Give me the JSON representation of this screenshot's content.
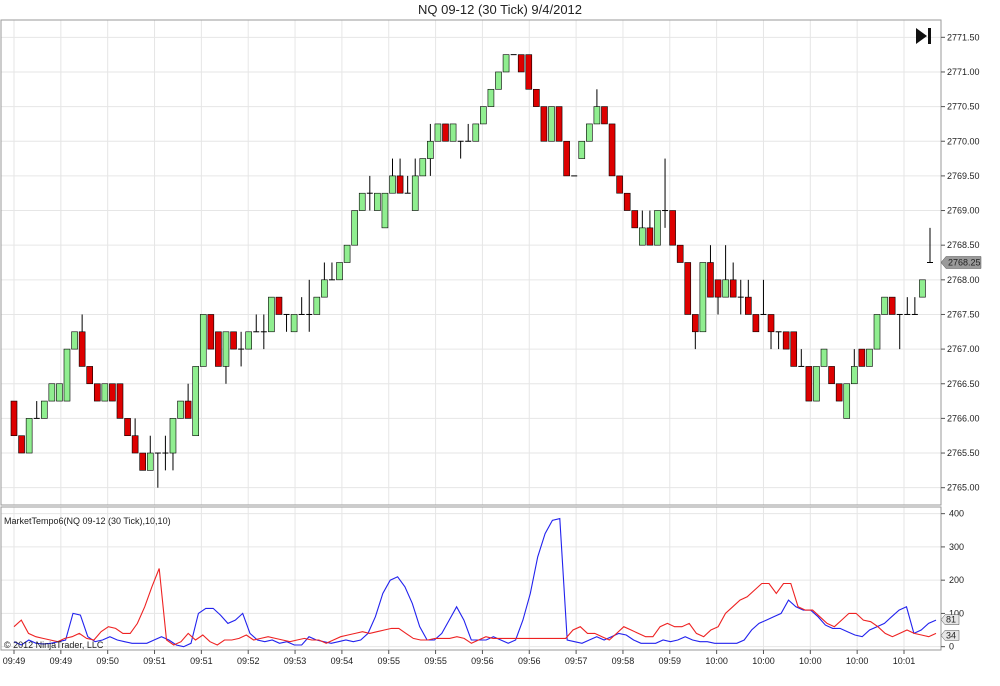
{
  "title": "NQ 09-12 (30 Tick)  9/4/2012",
  "indicator_label": "MarketTempo6(NQ 09-12 (30 Tick),10,10)",
  "copyright": "© 2012 NinjaTrader, LLC",
  "price_marker": "2768.25",
  "indicator_markers": [
    "81",
    "34"
  ],
  "icons": {
    "go_to_end": "skip-to-end-icon"
  },
  "colors": {
    "up": "#90ee90",
    "down": "#dd0000",
    "wick": "#000000",
    "blue_series": "#2222ee",
    "red_series": "#ee2222"
  },
  "chart_data": [
    {
      "type": "candlestick",
      "title": "NQ 09-12 (30 Tick)  9/4/2012",
      "ylim": [
        2764.75,
        2771.75
      ],
      "yticks": [
        "2765.00",
        "2765.50",
        "2766.00",
        "2766.50",
        "2767.00",
        "2767.50",
        "2768.00",
        "2768.50",
        "2769.00",
        "2769.50",
        "2770.00",
        "2770.50",
        "2771.00",
        "2771.50"
      ],
      "xticks": [
        "09:49",
        "09:49",
        "09:50",
        "09:51",
        "09:51",
        "09:52",
        "09:53",
        "09:54",
        "09:55",
        "09:55",
        "09:56",
        "09:56",
        "09:57",
        "09:58",
        "09:59",
        "10:00",
        "10:00",
        "10:00",
        "10:00",
        "10:01"
      ],
      "grid": true,
      "candles": [
        [
          2766.25,
          2766.25,
          2765.75,
          2765.75
        ],
        [
          2765.75,
          2765.75,
          2765.5,
          2765.5
        ],
        [
          2765.5,
          2766.0,
          2765.5,
          2766.0
        ],
        [
          2766.0,
          2766.25,
          2766.0,
          2766.0
        ],
        [
          2766.0,
          2766.25,
          2766.0,
          2766.25
        ],
        [
          2766.25,
          2766.5,
          2766.25,
          2766.5
        ],
        [
          2766.25,
          2766.5,
          2766.25,
          2766.5
        ],
        [
          2766.25,
          2767.0,
          2766.25,
          2767.0
        ],
        [
          2767.0,
          2767.25,
          2767.0,
          2767.25
        ],
        [
          2767.25,
          2767.5,
          2766.75,
          2766.75
        ],
        [
          2766.75,
          2766.75,
          2766.5,
          2766.5
        ],
        [
          2766.5,
          2766.5,
          2766.25,
          2766.25
        ],
        [
          2766.25,
          2766.5,
          2766.25,
          2766.5
        ],
        [
          2766.5,
          2766.5,
          2766.25,
          2766.25
        ],
        [
          2766.5,
          2766.5,
          2766.0,
          2766.0
        ],
        [
          2766.0,
          2766.0,
          2765.75,
          2765.75
        ],
        [
          2765.75,
          2766.0,
          2765.5,
          2765.5
        ],
        [
          2765.5,
          2765.5,
          2765.25,
          2765.25
        ],
        [
          2765.25,
          2765.75,
          2765.25,
          2765.5
        ],
        [
          2765.5,
          2765.5,
          2765.0,
          2765.5
        ],
        [
          2765.5,
          2765.75,
          2765.25,
          2765.5
        ],
        [
          2765.5,
          2766.0,
          2765.25,
          2766.0
        ],
        [
          2766.0,
          2766.25,
          2766.0,
          2766.25
        ],
        [
          2766.25,
          2766.5,
          2766.0,
          2766.0
        ],
        [
          2765.75,
          2766.75,
          2765.75,
          2766.75
        ],
        [
          2766.75,
          2767.5,
          2766.75,
          2767.5
        ],
        [
          2767.5,
          2767.5,
          2767.0,
          2767.0
        ],
        [
          2767.25,
          2767.25,
          2766.75,
          2766.75
        ],
        [
          2766.75,
          2767.25,
          2766.5,
          2767.25
        ],
        [
          2767.25,
          2767.25,
          2767.0,
          2767.0
        ],
        [
          2767.0,
          2767.25,
          2766.75,
          2767.0
        ],
        [
          2767.0,
          2767.25,
          2767.0,
          2767.25
        ],
        [
          2767.25,
          2767.5,
          2767.25,
          2767.25
        ],
        [
          2767.25,
          2767.5,
          2767.0,
          2767.25
        ],
        [
          2767.25,
          2767.75,
          2767.25,
          2767.75
        ],
        [
          2767.75,
          2767.75,
          2767.5,
          2767.5
        ],
        [
          2767.5,
          2767.5,
          2767.25,
          2767.5
        ],
        [
          2767.25,
          2767.5,
          2767.25,
          2767.5
        ],
        [
          2767.5,
          2767.75,
          2767.5,
          2767.5
        ],
        [
          2767.5,
          2768.0,
          2767.25,
          2767.5
        ],
        [
          2767.5,
          2767.75,
          2767.5,
          2767.75
        ],
        [
          2767.75,
          2768.25,
          2767.75,
          2768.0
        ],
        [
          2768.0,
          2768.25,
          2768.0,
          2768.0
        ],
        [
          2768.0,
          2768.25,
          2768.0,
          2768.25
        ],
        [
          2768.25,
          2768.5,
          2768.25,
          2768.5
        ],
        [
          2768.5,
          2769.0,
          2768.5,
          2769.0
        ],
        [
          2769.0,
          2769.25,
          2769.0,
          2769.25
        ],
        [
          2769.25,
          2769.5,
          2769.0,
          2769.25
        ],
        [
          2769.0,
          2769.25,
          2769.0,
          2769.25
        ],
        [
          2768.75,
          2769.25,
          2768.75,
          2769.25
        ],
        [
          2769.25,
          2769.75,
          2769.25,
          2769.5
        ],
        [
          2769.5,
          2769.75,
          2769.25,
          2769.25
        ],
        [
          2769.25,
          2769.5,
          2769.25,
          2769.25
        ],
        [
          2769.0,
          2769.75,
          2769.0,
          2769.5
        ],
        [
          2769.5,
          2769.75,
          2769.5,
          2769.75
        ],
        [
          2769.75,
          2770.25,
          2769.5,
          2770.0
        ],
        [
          2770.0,
          2770.25,
          2770.0,
          2770.25
        ],
        [
          2770.25,
          2770.25,
          2770.0,
          2770.0
        ],
        [
          2770.0,
          2770.25,
          2770.0,
          2770.25
        ],
        [
          2770.0,
          2770.0,
          2769.75,
          2770.0
        ],
        [
          2770.0,
          2770.25,
          2770.0,
          2770.0
        ],
        [
          2770.0,
          2770.25,
          2770.0,
          2770.25
        ],
        [
          2770.25,
          2770.5,
          2770.25,
          2770.5
        ],
        [
          2770.5,
          2770.75,
          2770.5,
          2770.75
        ],
        [
          2770.75,
          2771.0,
          2770.75,
          2771.0
        ],
        [
          2771.0,
          2771.25,
          2771.0,
          2771.25
        ],
        [
          2771.25,
          2771.25,
          2771.25,
          2771.25
        ],
        [
          2771.25,
          2771.25,
          2771.0,
          2771.0
        ],
        [
          2771.25,
          2771.25,
          2770.75,
          2770.75
        ],
        [
          2770.75,
          2770.75,
          2770.5,
          2770.5
        ],
        [
          2770.5,
          2770.5,
          2770.0,
          2770.0
        ],
        [
          2770.0,
          2770.5,
          2770.0,
          2770.5
        ],
        [
          2770.5,
          2770.5,
          2770.0,
          2770.0
        ],
        [
          2770.0,
          2770.0,
          2769.5,
          2769.5
        ],
        [
          2769.5,
          2769.5,
          2769.5,
          2769.5
        ],
        [
          2769.75,
          2770.0,
          2769.75,
          2770.0
        ],
        [
          2770.0,
          2770.25,
          2770.0,
          2770.25
        ],
        [
          2770.25,
          2770.75,
          2770.25,
          2770.5
        ],
        [
          2770.5,
          2770.5,
          2770.25,
          2770.25
        ],
        [
          2770.25,
          2770.25,
          2769.5,
          2769.5
        ],
        [
          2769.5,
          2769.5,
          2769.25,
          2769.25
        ],
        [
          2769.25,
          2769.25,
          2769.0,
          2769.0
        ],
        [
          2769.0,
          2769.0,
          2768.75,
          2768.75
        ],
        [
          2768.5,
          2769.0,
          2768.5,
          2768.75
        ],
        [
          2768.75,
          2769.0,
          2768.5,
          2768.5
        ],
        [
          2768.5,
          2769.0,
          2768.5,
          2769.0
        ],
        [
          2769.0,
          2769.75,
          2768.75,
          2769.0
        ],
        [
          2769.0,
          2769.0,
          2768.5,
          2768.5
        ],
        [
          2768.5,
          2768.5,
          2768.25,
          2768.25
        ],
        [
          2768.25,
          2768.25,
          2767.5,
          2767.5
        ],
        [
          2767.5,
          2767.5,
          2767.0,
          2767.25
        ],
        [
          2767.25,
          2768.25,
          2767.25,
          2768.25
        ],
        [
          2768.25,
          2768.5,
          2767.75,
          2767.75
        ],
        [
          2768.0,
          2768.0,
          2767.5,
          2767.75
        ],
        [
          2767.75,
          2768.5,
          2767.75,
          2768.0
        ],
        [
          2768.0,
          2768.25,
          2767.75,
          2767.75
        ],
        [
          2767.75,
          2768.0,
          2767.5,
          2767.75
        ],
        [
          2767.75,
          2768.0,
          2767.5,
          2767.5
        ],
        [
          2767.5,
          2767.5,
          2767.25,
          2767.25
        ],
        [
          2767.5,
          2768.0,
          2767.5,
          2767.5
        ],
        [
          2767.5,
          2767.5,
          2767.0,
          2767.25
        ],
        [
          2767.25,
          2767.25,
          2767.0,
          2767.25
        ],
        [
          2767.25,
          2767.25,
          2767.0,
          2767.0
        ],
        [
          2767.25,
          2767.25,
          2766.75,
          2766.75
        ],
        [
          2766.75,
          2767.0,
          2766.75,
          2766.75
        ],
        [
          2766.75,
          2766.75,
          2766.25,
          2766.25
        ],
        [
          2766.25,
          2766.75,
          2766.25,
          2766.75
        ],
        [
          2766.75,
          2767.0,
          2766.75,
          2767.0
        ],
        [
          2766.75,
          2766.75,
          2766.5,
          2766.5
        ],
        [
          2766.5,
          2766.5,
          2766.25,
          2766.25
        ],
        [
          2766.0,
          2766.5,
          2766.0,
          2766.5
        ],
        [
          2766.5,
          2767.0,
          2766.5,
          2766.75
        ],
        [
          2767.0,
          2767.0,
          2766.75,
          2766.75
        ],
        [
          2766.75,
          2767.0,
          2766.75,
          2767.0
        ],
        [
          2767.0,
          2767.5,
          2767.0,
          2767.5
        ],
        [
          2767.5,
          2767.75,
          2767.5,
          2767.75
        ],
        [
          2767.75,
          2767.75,
          2767.5,
          2767.5
        ],
        [
          2767.5,
          2767.5,
          2767.0,
          2767.5
        ],
        [
          2767.5,
          2767.75,
          2767.5,
          2767.5
        ],
        [
          2767.5,
          2767.75,
          2767.5,
          2767.5
        ],
        [
          2767.75,
          2768.0,
          2767.75,
          2768.0
        ],
        [
          2768.25,
          2768.75,
          2768.25,
          2768.25
        ]
      ]
    },
    {
      "type": "line",
      "title": "MarketTempo6(NQ 09-12 (30 Tick),10,10)",
      "ylim": [
        -10,
        420
      ],
      "yticks": [
        0,
        100,
        200,
        300,
        400
      ],
      "grid": true,
      "series": [
        {
          "color": "#2222ee",
          "values": [
            15,
            5,
            20,
            10,
            8,
            10,
            15,
            20,
            100,
            95,
            30,
            15,
            20,
            30,
            20,
            15,
            10,
            10,
            10,
            20,
            30,
            20,
            5,
            0,
            10,
            100,
            115,
            115,
            95,
            70,
            80,
            100,
            40,
            20,
            15,
            20,
            10,
            15,
            5,
            5,
            30,
            20,
            15,
            10,
            15,
            20,
            15,
            20,
            40,
            90,
            160,
            200,
            210,
            180,
            130,
            60,
            20,
            20,
            40,
            80,
            120,
            80,
            20,
            20,
            20,
            30,
            20,
            10,
            20,
            80,
            160,
            270,
            340,
            380,
            385,
            20,
            15,
            10,
            20,
            30,
            20,
            30,
            40,
            35,
            20,
            10,
            10,
            10,
            20,
            15,
            20,
            30,
            20,
            15,
            15,
            10,
            10,
            10,
            10,
            20,
            50,
            70,
            80,
            90,
            100,
            140,
            120,
            110,
            110,
            90,
            65,
            55,
            55,
            45,
            35,
            30,
            50,
            60,
            70,
            90,
            110,
            120,
            40,
            50,
            70,
            80
          ]
        },
        {
          "color": "#ee2222",
          "values": [
            60,
            80,
            40,
            30,
            25,
            20,
            15,
            25,
            30,
            40,
            25,
            20,
            45,
            60,
            55,
            40,
            40,
            70,
            120,
            180,
            235,
            20,
            5,
            15,
            40,
            20,
            35,
            15,
            5,
            20,
            20,
            25,
            35,
            20,
            25,
            30,
            25,
            20,
            15,
            20,
            25,
            20,
            20,
            10,
            20,
            30,
            35,
            40,
            45,
            40,
            45,
            50,
            55,
            55,
            40,
            25,
            20,
            20,
            25,
            25,
            25,
            30,
            25,
            10,
            20,
            30,
            25,
            25,
            25,
            25,
            25,
            25,
            25,
            25,
            25,
            25,
            25,
            50,
            60,
            40,
            40,
            30,
            20,
            40,
            60,
            50,
            40,
            30,
            30,
            60,
            70,
            60,
            60,
            70,
            40,
            30,
            50,
            60,
            100,
            120,
            140,
            150,
            170,
            190,
            190,
            160,
            190,
            190,
            120,
            110,
            110,
            90,
            70,
            60,
            80,
            100,
            100,
            80,
            75,
            60,
            40,
            30,
            40,
            50,
            40,
            35,
            30,
            40
          ]
        }
      ]
    }
  ]
}
